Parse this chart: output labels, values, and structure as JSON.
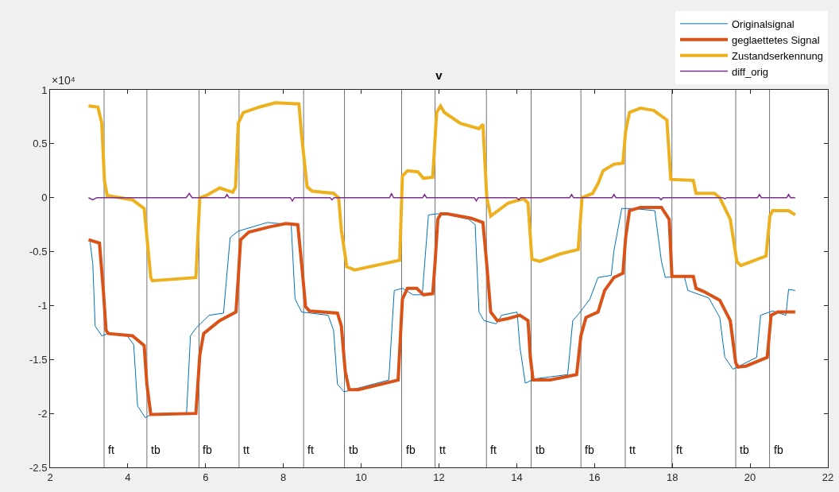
{
  "chart_data": {
    "type": "line",
    "title": "v",
    "annotations": [
      "×10⁴"
    ],
    "xlim": [
      2,
      22
    ],
    "xticks": [
      2,
      4,
      6,
      8,
      10,
      12,
      14,
      16,
      18,
      20,
      22
    ],
    "ylim": [
      -2.5,
      1
    ],
    "yticks": [
      -2.5,
      -2,
      -1.5,
      -1,
      -0.5,
      0,
      0.5,
      1
    ],
    "grid": false,
    "legend": "top right",
    "line_style": "solid",
    "marker": "none",
    "series": [
      {
        "name": "Originalsignal",
        "color": "#0072bd",
        "x": [
          3.03,
          3.1,
          3.16,
          3.33,
          3.5,
          3.98,
          4.15,
          4.25,
          4.45,
          4.59,
          5.51,
          5.61,
          5.75,
          6.09,
          6.46,
          6.63,
          6.84,
          7.59,
          8.2,
          8.3,
          8.47,
          9.15,
          9.29,
          9.39,
          9.56,
          10.71,
          10.85,
          11.06,
          11.33,
          11.57,
          11.73,
          11.94,
          12.14,
          12.76,
          12.93,
          13.03,
          13.16,
          13.47,
          13.61,
          14.01,
          14.08,
          14.22,
          14.45,
          15.31,
          15.44,
          15.61,
          15.88,
          16.09,
          16.43,
          16.5,
          16.7,
          16.97,
          17.55,
          17.72,
          17.82,
          18.3,
          18.4,
          18.94,
          19.22,
          19.35,
          19.56,
          20.17,
          20.27,
          20.58,
          20.92,
          20.99,
          21.16
        ],
        "values": [
          -0.41,
          -0.62,
          -1.19,
          -1.28,
          -1.26,
          -1.28,
          -1.36,
          -1.93,
          -2.04,
          -2.01,
          -2.0,
          -1.28,
          -1.21,
          -1.09,
          -1.07,
          -0.37,
          -0.31,
          -0.23,
          -0.25,
          -0.94,
          -1.06,
          -1.09,
          -1.23,
          -1.73,
          -1.8,
          -1.69,
          -0.86,
          -0.84,
          -0.9,
          -0.9,
          -0.16,
          -0.15,
          -0.15,
          -0.2,
          -0.25,
          -1.06,
          -1.14,
          -1.17,
          -1.09,
          -1.06,
          -1.38,
          -1.72,
          -1.68,
          -1.64,
          -1.14,
          -1.07,
          -0.94,
          -0.74,
          -0.72,
          -0.49,
          -0.1,
          -0.1,
          -0.12,
          -0.59,
          -0.74,
          -0.72,
          -0.86,
          -0.93,
          -1.11,
          -1.48,
          -1.59,
          -1.48,
          -1.09,
          -1.05,
          -1.09,
          -0.85,
          -0.86
        ]
      },
      {
        "name": "geglaettetes Signal",
        "color": "#d95319",
        "x": [
          2.99,
          3.27,
          3.37,
          3.44,
          3.5,
          4.12,
          4.42,
          4.49,
          4.59,
          5.75,
          5.85,
          5.95,
          6.36,
          6.78,
          6.84,
          6.9,
          7.11,
          7.65,
          8.06,
          8.37,
          8.47,
          8.57,
          8.67,
          9.39,
          9.49,
          9.59,
          9.69,
          9.93,
          10.95,
          11.06,
          11.19,
          11.43,
          11.6,
          11.84,
          11.9,
          11.97,
          12.05,
          12.21,
          12.82,
          13.13,
          13.23,
          13.33,
          13.5,
          13.78,
          14.08,
          14.29,
          14.35,
          14.42,
          14.86,
          15.54,
          15.65,
          15.78,
          16.09,
          16.26,
          16.5,
          16.73,
          16.8,
          16.9,
          17.18,
          17.72,
          17.92,
          17.99,
          18.54,
          18.61,
          18.81,
          19.22,
          19.49,
          19.63,
          19.69,
          19.9,
          20.44,
          20.54,
          20.71,
          21.16
        ],
        "values": [
          -0.39,
          -0.42,
          -0.86,
          -1.23,
          -1.26,
          -1.28,
          -1.37,
          -1.73,
          -2.01,
          -2.0,
          -1.46,
          -1.26,
          -1.14,
          -1.06,
          -0.74,
          -0.39,
          -0.32,
          -0.27,
          -0.24,
          -0.25,
          -0.62,
          -1.01,
          -1.05,
          -1.07,
          -1.19,
          -1.61,
          -1.78,
          -1.78,
          -1.69,
          -0.94,
          -0.84,
          -0.84,
          -0.9,
          -0.89,
          -0.6,
          -0.2,
          -0.15,
          -0.15,
          -0.19,
          -0.23,
          -0.62,
          -1.06,
          -1.14,
          -1.12,
          -1.09,
          -1.14,
          -1.48,
          -1.69,
          -1.69,
          -1.64,
          -1.28,
          -1.11,
          -1.06,
          -0.86,
          -0.74,
          -0.7,
          -0.37,
          -0.12,
          -0.09,
          -0.09,
          -0.2,
          -0.73,
          -0.73,
          -0.84,
          -0.87,
          -0.95,
          -1.14,
          -1.53,
          -1.57,
          -1.56,
          -1.48,
          -1.09,
          -1.06,
          -1.06
        ]
      },
      {
        "name": "Zustandserkennung",
        "color": "#edb120",
        "x": [
          2.99,
          3.23,
          3.33,
          3.4,
          3.47,
          4.12,
          4.42,
          4.59,
          4.63,
          5.75,
          5.85,
          6.02,
          6.36,
          6.7,
          6.77,
          6.84,
          6.97,
          7.38,
          7.79,
          8.4,
          8.47,
          8.61,
          8.74,
          9.29,
          9.42,
          9.49,
          9.63,
          9.83,
          10.99,
          11.06,
          11.19,
          11.46,
          11.6,
          11.84,
          11.94,
          12.04,
          12.14,
          12.55,
          13.03,
          13.13,
          13.23,
          13.33,
          13.78,
          14.18,
          14.29,
          14.39,
          14.59,
          15.13,
          15.58,
          15.68,
          15.95,
          16.09,
          16.22,
          16.5,
          16.73,
          16.8,
          16.9,
          17.18,
          17.52,
          17.86,
          17.96,
          18.54,
          18.61,
          19.08,
          19.22,
          19.49,
          19.66,
          19.76,
          20.41,
          20.51,
          20.58,
          20.99,
          21.16
        ],
        "values": [
          0.85,
          0.84,
          0.69,
          0.15,
          0.02,
          -0.02,
          -0.1,
          -0.74,
          -0.77,
          -0.74,
          0,
          0.02,
          0.09,
          0.05,
          0.1,
          0.69,
          0.79,
          0.84,
          0.88,
          0.87,
          0.57,
          0.1,
          0.06,
          0.04,
          0,
          -0.3,
          -0.64,
          -0.67,
          -0.58,
          0.2,
          0.25,
          0.24,
          0.18,
          0.19,
          0.79,
          0.85,
          0.79,
          0.69,
          0.64,
          0.68,
          0,
          -0.17,
          -0.05,
          -0.01,
          -0.05,
          -0.57,
          -0.59,
          -0.52,
          -0.48,
          0,
          0.04,
          0.13,
          0.25,
          0.31,
          0.32,
          0.62,
          0.79,
          0.83,
          0.81,
          0.72,
          0.17,
          0.16,
          0.04,
          0.04,
          0,
          -0.2,
          -0.59,
          -0.63,
          -0.54,
          -0.17,
          -0.12,
          -0.12,
          -0.16
        ]
      },
      {
        "name": "diff_orig",
        "color": "#7e2f8e",
        "x": [
          2.99,
          3.1,
          3.2,
          5.5,
          5.58,
          5.65,
          6.5,
          6.55,
          6.6,
          8.18,
          8.23,
          8.28,
          9.2,
          9.25,
          9.3,
          10.73,
          10.78,
          10.83,
          11.58,
          11.63,
          11.68,
          12.91,
          12.96,
          13.01,
          14.0,
          14.05,
          14.1,
          15.36,
          15.41,
          15.46,
          16.45,
          16.5,
          16.55,
          17.66,
          17.71,
          17.76,
          19.3,
          19.35,
          19.4,
          20.19,
          20.24,
          20.29,
          20.94,
          20.99,
          21.04,
          21.16
        ],
        "values": [
          0,
          -0.02,
          0,
          0,
          0.04,
          0,
          0,
          0.03,
          0,
          0,
          -0.03,
          0,
          0,
          -0.02,
          0,
          0,
          0.04,
          0,
          0,
          0.03,
          0,
          0,
          -0.03,
          0,
          0,
          -0.02,
          0,
          0,
          0.03,
          0,
          0,
          0.03,
          0,
          0,
          -0.02,
          0,
          0,
          -0.01,
          0,
          0,
          0.03,
          0,
          0,
          0.03,
          0,
          0
        ]
      }
    ],
    "ref_lines": [
      {
        "axis": "x",
        "value": 3.39,
        "label": "ft"
      },
      {
        "axis": "x",
        "value": 4.49,
        "label": "tb"
      },
      {
        "axis": "x",
        "value": 5.83,
        "label": "fb"
      },
      {
        "axis": "x",
        "value": 6.86,
        "label": "tt"
      },
      {
        "axis": "x",
        "value": 8.52,
        "label": "ft"
      },
      {
        "axis": "x",
        "value": 9.57,
        "label": "tb"
      },
      {
        "axis": "x",
        "value": 11.04,
        "label": "fb"
      },
      {
        "axis": "x",
        "value": 11.9,
        "label": "tt"
      },
      {
        "axis": "x",
        "value": 13.22,
        "label": "ft"
      },
      {
        "axis": "x",
        "value": 14.37,
        "label": "tb"
      },
      {
        "axis": "x",
        "value": 15.65,
        "label": "fb"
      },
      {
        "axis": "x",
        "value": 16.79,
        "label": "tt"
      },
      {
        "axis": "x",
        "value": 17.99,
        "label": "ft"
      },
      {
        "axis": "x",
        "value": 19.63,
        "label": "tb"
      },
      {
        "axis": "x",
        "value": 20.5,
        "label": "fb"
      }
    ]
  }
}
